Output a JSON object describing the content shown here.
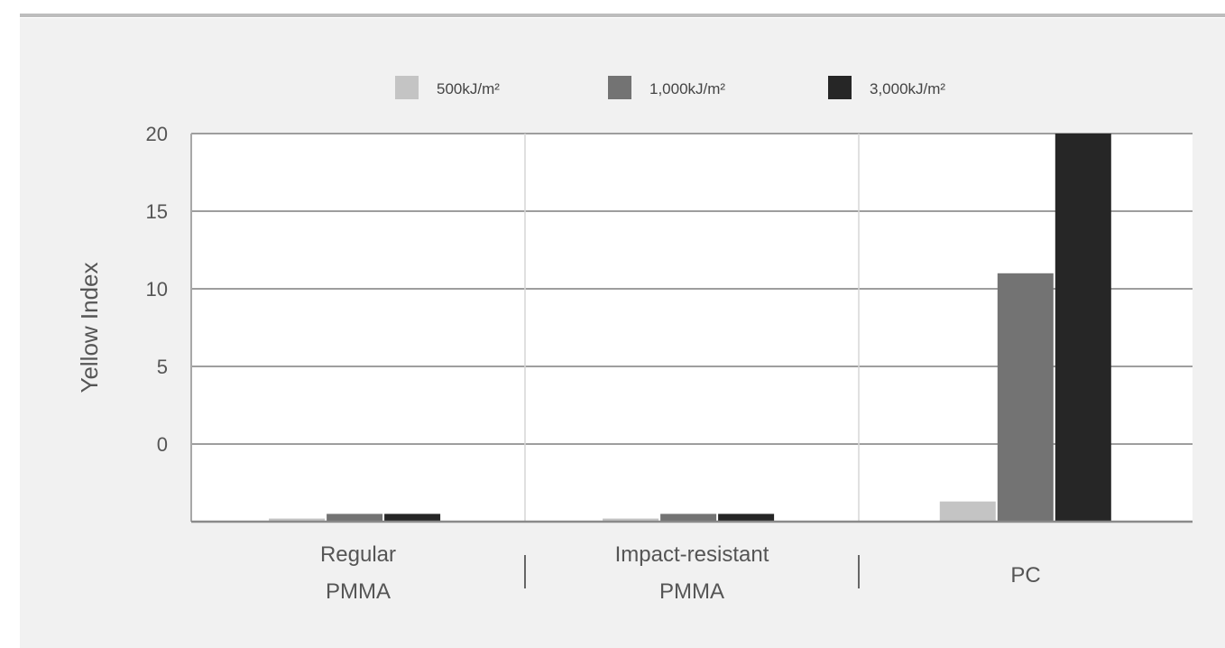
{
  "chart_data": {
    "type": "bar",
    "ylabel": "Yellow Index",
    "y_ticks": [
      "20",
      "15",
      "10",
      "5",
      "0"
    ],
    "ylim": [
      -5,
      20
    ],
    "categories": [
      [
        "Regular",
        "PMMA"
      ],
      [
        "Impact-resistant",
        "PMMA"
      ],
      [
        "PC"
      ]
    ],
    "series": [
      {
        "name": "500kJ/m²",
        "color": "#c4c4c4",
        "values": [
          -4.8,
          -4.8,
          -3.7
        ]
      },
      {
        "name": "1,000kJ/m²",
        "color": "#737373",
        "values": [
          -4.5,
          -4.5,
          11
        ]
      },
      {
        "name": "3,000kJ/m²",
        "color": "#262626",
        "values": [
          -4.5,
          -4.5,
          20
        ]
      }
    ],
    "legend_position": "top-center",
    "grid": true
  }
}
